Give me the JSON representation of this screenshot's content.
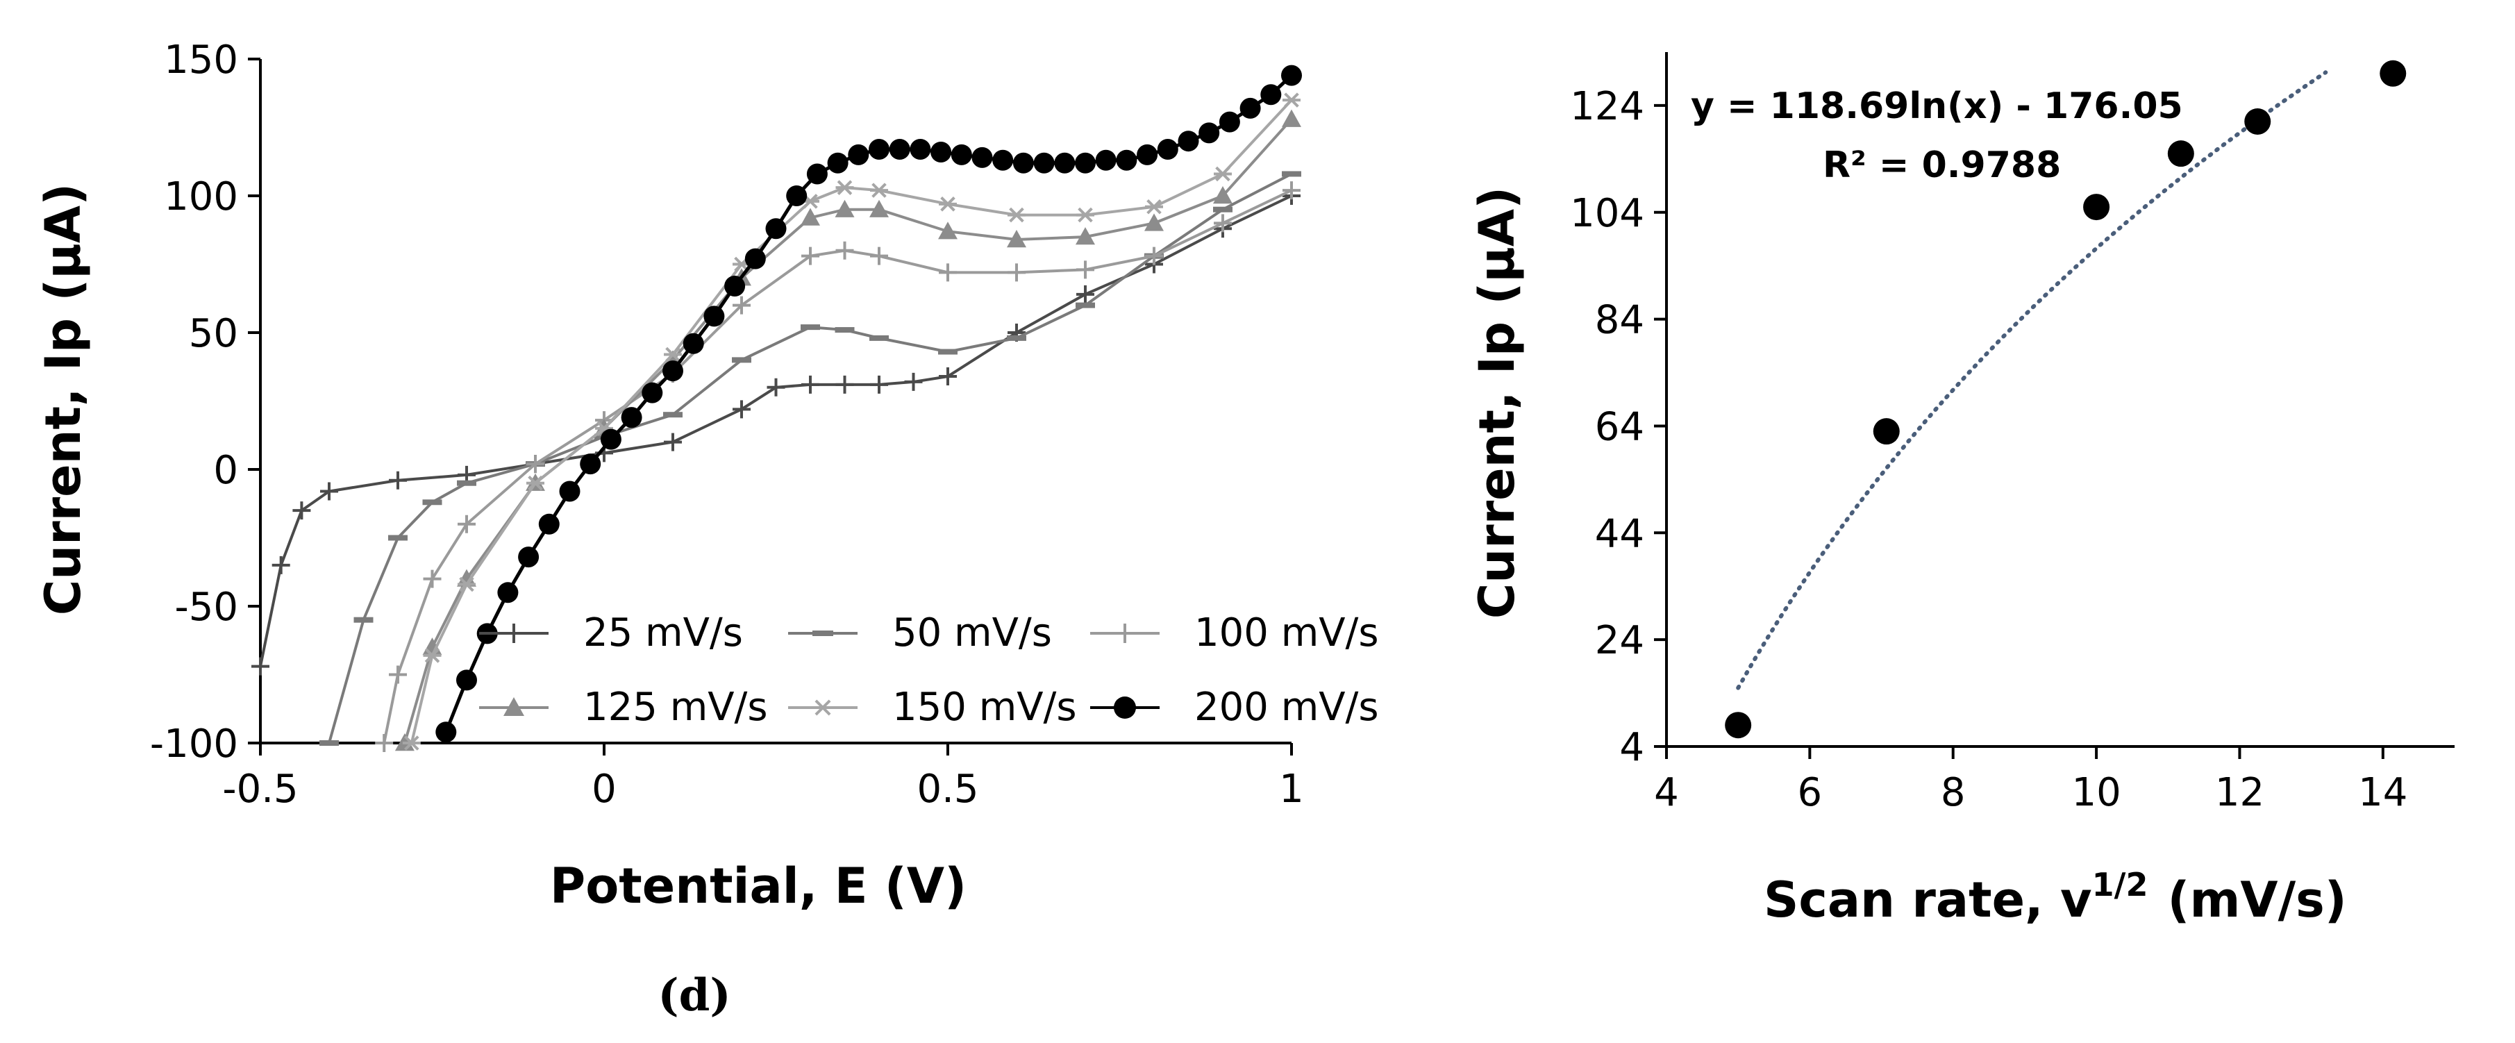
{
  "panel_label": "(d)",
  "chart_data": [
    {
      "type": "line",
      "title": "",
      "xlabel": "Potential, E (V)",
      "ylabel": "Current, Ip (µA)",
      "xlim": [
        -0.5,
        1
      ],
      "ylim": [
        -100,
        150
      ],
      "xticks": [
        -0.5,
        0,
        0.5,
        1
      ],
      "xtick_labels": [
        "-0.5",
        "0",
        "0.5",
        "1"
      ],
      "yticks": [
        -100,
        -50,
        0,
        50,
        100,
        150
      ],
      "ytick_labels": [
        "-100",
        "-50",
        "0",
        "50",
        "100",
        "150"
      ],
      "grid": false,
      "legend_position": "bottom-right",
      "series": [
        {
          "name": "25 mV/s",
          "marker": "plus",
          "color": "#4a4a4a",
          "x": [
            -0.5,
            -0.47,
            -0.44,
            -0.4,
            -0.3,
            -0.2,
            -0.1,
            0,
            0.1,
            0.2,
            0.25,
            0.3,
            0.35,
            0.4,
            0.45,
            0.5,
            0.6,
            0.7,
            0.8,
            0.9,
            1.0
          ],
          "y": [
            -72,
            -35,
            -15,
            -8,
            -4,
            -2,
            2,
            6,
            10,
            22,
            30,
            31,
            31,
            31,
            32,
            34,
            50,
            64,
            75,
            88,
            100
          ]
        },
        {
          "name": "50 mV/s",
          "marker": "dash",
          "color": "#7a7a7a",
          "x": [
            -0.4,
            -0.35,
            -0.3,
            -0.25,
            -0.2,
            -0.1,
            0,
            0.1,
            0.2,
            0.3,
            0.35,
            0.4,
            0.5,
            0.6,
            0.7,
            0.8,
            0.9,
            1.0
          ],
          "y": [
            -100,
            -55,
            -25,
            -12,
            -5,
            2,
            12,
            20,
            40,
            52,
            51,
            48,
            43,
            48,
            60,
            78,
            95,
            108
          ]
        },
        {
          "name": "100 mV/s",
          "marker": "plus",
          "color": "#9a9a9a",
          "x": [
            -0.32,
            -0.3,
            -0.25,
            -0.2,
            -0.1,
            0,
            0.1,
            0.2,
            0.3,
            0.35,
            0.4,
            0.5,
            0.6,
            0.7,
            0.8,
            0.9,
            1.0
          ],
          "y": [
            -100,
            -75,
            -40,
            -20,
            2,
            18,
            35,
            60,
            78,
            80,
            78,
            72,
            72,
            73,
            78,
            90,
            102
          ]
        },
        {
          "name": "125 mV/s",
          "marker": "triangle",
          "color": "#8c8c8c",
          "x": [
            -0.29,
            -0.25,
            -0.2,
            -0.1,
            0,
            0.1,
            0.2,
            0.3,
            0.35,
            0.4,
            0.5,
            0.6,
            0.7,
            0.8,
            0.9,
            1.0
          ],
          "y": [
            -100,
            -65,
            -40,
            -5,
            15,
            40,
            70,
            92,
            95,
            95,
            87,
            84,
            85,
            90,
            100,
            128
          ]
        },
        {
          "name": "150 mV/s",
          "marker": "star",
          "color": "#a6a6a6",
          "x": [
            -0.28,
            -0.25,
            -0.2,
            -0.1,
            0,
            0.1,
            0.2,
            0.3,
            0.35,
            0.4,
            0.5,
            0.6,
            0.7,
            0.8,
            0.9,
            1.0
          ],
          "y": [
            -100,
            -68,
            -42,
            -5,
            15,
            42,
            75,
            98,
            103,
            102,
            97,
            93,
            93,
            96,
            108,
            135
          ]
        },
        {
          "name": "200 mV/s",
          "marker": "circle",
          "color": "#000000",
          "x": [
            -0.23,
            -0.2,
            -0.17,
            -0.14,
            -0.11,
            -0.08,
            -0.05,
            -0.02,
            0.01,
            0.04,
            0.07,
            0.1,
            0.13,
            0.16,
            0.19,
            0.22,
            0.25,
            0.28,
            0.31,
            0.34,
            0.37,
            0.4,
            0.43,
            0.46,
            0.49,
            0.52,
            0.55,
            0.58,
            0.61,
            0.64,
            0.67,
            0.7,
            0.73,
            0.76,
            0.79,
            0.82,
            0.85,
            0.88,
            0.91,
            0.94,
            0.97,
            1.0
          ],
          "y": [
            -96,
            -77,
            -60,
            -45,
            -32,
            -20,
            -8,
            2,
            11,
            19,
            28,
            36,
            46,
            56,
            67,
            77,
            88,
            100,
            108,
            112,
            115,
            117,
            117,
            117,
            116,
            115,
            114,
            113,
            112,
            112,
            112,
            112,
            113,
            113,
            115,
            117,
            120,
            123,
            127,
            132,
            137,
            144
          ]
        }
      ]
    },
    {
      "type": "scatter",
      "title": "",
      "xlabel": "Scan rate, v",
      "xlabel_superscript": "1/2",
      "xlabel_units": "(mV/s)",
      "ylabel": "Current, Ip (µA)",
      "xlim": [
        4,
        15
      ],
      "ylim": [
        4,
        134
      ],
      "xticks": [
        4,
        6,
        8,
        10,
        12,
        14
      ],
      "xtick_labels": [
        "4",
        "6",
        "8",
        "10",
        "12",
        "14"
      ],
      "yticks": [
        4,
        24,
        44,
        64,
        84,
        104,
        124
      ],
      "ytick_labels": [
        "4",
        "24",
        "44",
        "64",
        "84",
        "104",
        "124"
      ],
      "grid": false,
      "x": [
        5.0,
        7.07,
        10.0,
        11.18,
        12.25,
        14.14
      ],
      "y": [
        8,
        63,
        105,
        115,
        121,
        130
      ],
      "trendline": {
        "type": "logarithmic",
        "a": 118.69,
        "b": -176.05,
        "x_range": [
          5.0,
          13.2
        ]
      },
      "equation_text": "y = 118.69ln(x) - 176.05",
      "r2_text": "R² = 0.9788"
    }
  ]
}
